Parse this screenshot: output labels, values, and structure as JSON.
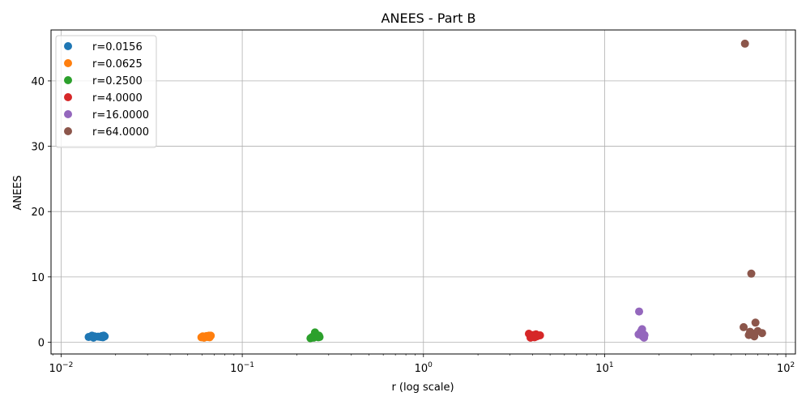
{
  "chart_data": {
    "type": "scatter",
    "title": "ANEES - Part B",
    "xlabel": "r (log scale)",
    "ylabel": "ANEES",
    "xscale": "log",
    "xlim": [
      0.0088,
      113
    ],
    "ylim": [
      -1.8,
      47.8
    ],
    "grid": true,
    "legend": "top-left",
    "x_ticks": [
      {
        "value": 0.01,
        "base": "10",
        "exp": "−2"
      },
      {
        "value": 0.1,
        "base": "10",
        "exp": "−1"
      },
      {
        "value": 1,
        "base": "10",
        "exp": "0"
      },
      {
        "value": 10,
        "base": "10",
        "exp": "1"
      },
      {
        "value": 100,
        "base": "10",
        "exp": "2"
      }
    ],
    "y_ticks": [
      {
        "value": 0,
        "label": "0"
      },
      {
        "value": 10,
        "label": "10"
      },
      {
        "value": 20,
        "label": "20"
      },
      {
        "value": 30,
        "label": "30"
      },
      {
        "value": 40,
        "label": "40"
      }
    ],
    "series": [
      {
        "name": "r=0.0156",
        "color": "#1f77b4",
        "points": [
          [
            0.0142,
            0.8
          ],
          [
            0.0148,
            1.0
          ],
          [
            0.0151,
            0.7
          ],
          [
            0.0153,
            0.9
          ],
          [
            0.016,
            0.85
          ],
          [
            0.0165,
            0.8
          ],
          [
            0.0168,
            0.95
          ],
          [
            0.017,
            0.75
          ],
          [
            0.0172,
            1.0
          ],
          [
            0.0174,
            0.9
          ]
        ]
      },
      {
        "name": "r=0.0625",
        "color": "#ff7f0e",
        "points": [
          [
            0.0595,
            0.75
          ],
          [
            0.0605,
            0.9
          ],
          [
            0.0615,
            0.7
          ],
          [
            0.0625,
            0.85
          ],
          [
            0.0635,
            0.95
          ],
          [
            0.0645,
            0.8
          ],
          [
            0.0655,
            1.0
          ],
          [
            0.066,
            0.75
          ],
          [
            0.0665,
            0.9
          ],
          [
            0.067,
            1.0
          ]
        ]
      },
      {
        "name": "r=0.2500",
        "color": "#2ca02c",
        "points": [
          [
            0.238,
            0.6
          ],
          [
            0.243,
            0.8
          ],
          [
            0.248,
            0.7
          ],
          [
            0.252,
            1.5
          ],
          [
            0.255,
            0.9
          ],
          [
            0.258,
            1.1
          ],
          [
            0.261,
            0.85
          ],
          [
            0.263,
            0.75
          ],
          [
            0.265,
            1.0
          ],
          [
            0.267,
            0.8
          ]
        ]
      },
      {
        "name": "r=4.0000",
        "color": "#d62728",
        "points": [
          [
            3.82,
            1.3
          ],
          [
            3.9,
            0.7
          ],
          [
            3.95,
            1.0
          ],
          [
            4.0,
            0.8
          ],
          [
            4.05,
            1.1
          ],
          [
            4.1,
            0.75
          ],
          [
            4.18,
            1.2
          ],
          [
            4.22,
            0.9
          ],
          [
            4.3,
            1.0
          ],
          [
            4.4,
            1.05
          ]
        ]
      },
      {
        "name": "r=16.0000",
        "color": "#9467bd",
        "points": [
          [
            15.5,
            4.7
          ],
          [
            15.4,
            1.2
          ],
          [
            15.7,
            1.4
          ],
          [
            15.9,
            1.7
          ],
          [
            16.1,
            2.0
          ],
          [
            16.2,
            0.9
          ],
          [
            16.3,
            1.3
          ],
          [
            16.4,
            1.0
          ],
          [
            16.5,
            0.7
          ],
          [
            16.6,
            1.1
          ]
        ]
      },
      {
        "name": "r=64.0000",
        "color": "#8c564b",
        "points": [
          [
            59.5,
            45.7
          ],
          [
            64.5,
            10.5
          ],
          [
            58.5,
            2.3
          ],
          [
            68.0,
            3.0
          ],
          [
            62.5,
            1.1
          ],
          [
            63.5,
            1.6
          ],
          [
            66.0,
            1.3
          ],
          [
            67.0,
            0.9
          ],
          [
            70.0,
            1.7
          ],
          [
            74.0,
            1.4
          ]
        ]
      }
    ]
  }
}
